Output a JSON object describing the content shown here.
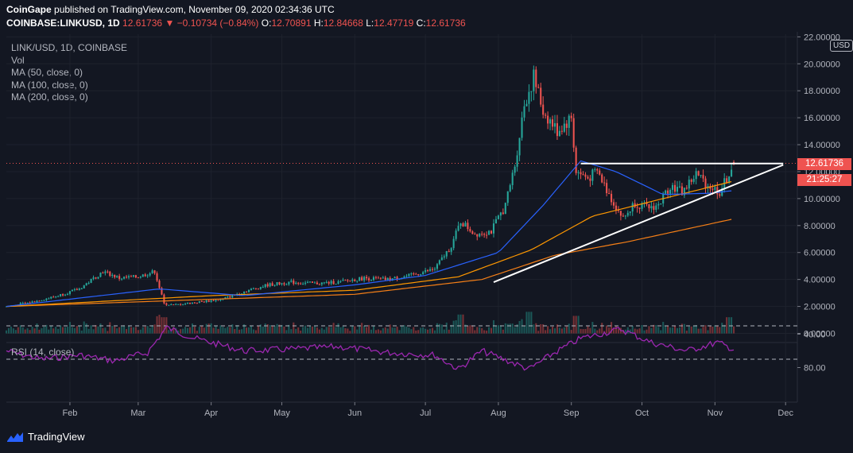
{
  "header": {
    "publisher": "CoinGape",
    "text": "published on TradingView.com, November 09, 2020 02:34:36 UTC"
  },
  "symbol_line": {
    "symbol": "COINBASE:LINKUSD, 1D",
    "price": "12.61736",
    "arrow": "▼",
    "change": "−0.10734 (−0.84%)",
    "o_label": "O:",
    "o": "12.70891",
    "h_label": "H:",
    "h": "12.84668",
    "l_label": "L:",
    "l": "12.47719",
    "c_label": "C:",
    "c": "12.61736"
  },
  "legend": {
    "pair": "LINK/USD, 1D, COINBASE",
    "vol": "Vol",
    "ma50": "MA (50, close, 0)",
    "ma100": "MA (100, close, 0)",
    "ma200": "MA (200, close, 0)"
  },
  "rsi_label": "RSI (14, close)",
  "currency": "USD",
  "price_tag": "12.61736",
  "countdown": "21:25:27",
  "footer": {
    "brand": "TradingView"
  },
  "colors": {
    "background": "#131722",
    "up": "#26a69a",
    "down": "#ef5350",
    "ma50": "#2962ff",
    "ma100": "#ff9800",
    "ma200": "#f57f17",
    "rsi": "#9c27b0"
  },
  "chart_data": {
    "type": "candlestick",
    "y_ticks": [
      "22.00000",
      "20.00000",
      "18.00000",
      "16.00000",
      "14.00000",
      "12.00000",
      "10.00000",
      "8.00000",
      "6.00000",
      "4.00000",
      "2.00000",
      "0.00000"
    ],
    "x_ticks": [
      "Feb",
      "Mar",
      "Apr",
      "May",
      "Jun",
      "Jul",
      "Aug",
      "Sep",
      "Oct",
      "Nov",
      "Dec"
    ],
    "rsi_ticks": [
      "80.00",
      "40.00"
    ],
    "rsi_bands": [
      70,
      30
    ],
    "ylim": [
      0,
      22
    ],
    "close_series": [
      [
        "2020-01-05",
        2.0
      ],
      [
        "2020-01-15",
        2.3
      ],
      [
        "2020-01-25",
        2.7
      ],
      [
        "2020-02-05",
        3.3
      ],
      [
        "2020-02-15",
        4.6
      ],
      [
        "2020-02-22",
        4.1
      ],
      [
        "2020-03-01",
        4.2
      ],
      [
        "2020-03-08",
        4.6
      ],
      [
        "2020-03-12",
        2.2
      ],
      [
        "2020-03-16",
        2.1
      ],
      [
        "2020-03-25",
        2.3
      ],
      [
        "2020-04-05",
        2.5
      ],
      [
        "2020-04-15",
        3.1
      ],
      [
        "2020-04-25",
        3.6
      ],
      [
        "2020-05-05",
        3.8
      ],
      [
        "2020-05-15",
        3.7
      ],
      [
        "2020-05-25",
        3.8
      ],
      [
        "2020-06-05",
        4.1
      ],
      [
        "2020-06-15",
        4.0
      ],
      [
        "2020-06-25",
        4.3
      ],
      [
        "2020-07-05",
        4.8
      ],
      [
        "2020-07-12",
        6.5
      ],
      [
        "2020-07-16",
        8.3
      ],
      [
        "2020-07-22",
        7.4
      ],
      [
        "2020-07-29",
        7.6
      ],
      [
        "2020-08-04",
        9.5
      ],
      [
        "2020-08-08",
        12.5
      ],
      [
        "2020-08-12",
        17.0
      ],
      [
        "2020-08-16",
        19.0
      ],
      [
        "2020-08-20",
        16.5
      ],
      [
        "2020-08-26",
        15.0
      ],
      [
        "2020-09-01",
        16.0
      ],
      [
        "2020-09-03",
        12.0
      ],
      [
        "2020-09-08",
        11.5
      ],
      [
        "2020-09-12",
        12.0
      ],
      [
        "2020-09-18",
        10.0
      ],
      [
        "2020-09-23",
        8.5
      ],
      [
        "2020-09-28",
        9.7
      ],
      [
        "2020-10-03",
        9.3
      ],
      [
        "2020-10-08",
        9.5
      ],
      [
        "2020-10-13",
        11.0
      ],
      [
        "2020-10-18",
        10.5
      ],
      [
        "2020-10-24",
        11.8
      ],
      [
        "2020-10-29",
        11.0
      ],
      [
        "2020-11-03",
        10.5
      ],
      [
        "2020-11-06",
        11.5
      ],
      [
        "2020-11-09",
        12.62
      ]
    ],
    "ma50": [
      [
        "2020-01-05",
        2.0
      ],
      [
        "2020-03-10",
        3.3
      ],
      [
        "2020-04-15",
        2.8
      ],
      [
        "2020-06-01",
        3.6
      ],
      [
        "2020-07-01",
        4.3
      ],
      [
        "2020-08-01",
        6.0
      ],
      [
        "2020-08-20",
        9.5
      ],
      [
        "2020-09-05",
        12.8
      ],
      [
        "2020-09-20",
        12.0
      ],
      [
        "2020-10-10",
        10.3
      ],
      [
        "2020-10-30",
        10.4
      ],
      [
        "2020-11-09",
        10.6
      ]
    ],
    "ma100": [
      [
        "2020-01-05",
        2.0
      ],
      [
        "2020-04-01",
        2.8
      ],
      [
        "2020-06-01",
        3.2
      ],
      [
        "2020-07-15",
        4.2
      ],
      [
        "2020-08-15",
        6.2
      ],
      [
        "2020-09-10",
        8.7
      ],
      [
        "2020-10-10",
        10.0
      ],
      [
        "2020-11-09",
        11.3
      ]
    ],
    "ma200": [
      [
        "2020-01-05",
        2.0
      ],
      [
        "2020-06-01",
        2.9
      ],
      [
        "2020-07-25",
        4.0
      ],
      [
        "2020-08-25",
        5.8
      ],
      [
        "2020-09-25",
        6.8
      ],
      [
        "2020-11-09",
        8.5
      ]
    ],
    "volume": [
      [
        "2020-03-12",
        1.2
      ],
      [
        "2020-07-16",
        1.4
      ],
      [
        "2020-08-14",
        1.6
      ],
      [
        "2020-09-03",
        1.3
      ],
      [
        "2020-11-07",
        1.2
      ]
    ],
    "rsi": [
      [
        "2020-01-05",
        60
      ],
      [
        "2020-01-20",
        70
      ],
      [
        "2020-02-05",
        65
      ],
      [
        "2020-02-20",
        72
      ],
      [
        "2020-03-05",
        62
      ],
      [
        "2020-03-13",
        32
      ],
      [
        "2020-03-25",
        45
      ],
      [
        "2020-04-15",
        60
      ],
      [
        "2020-05-05",
        58
      ],
      [
        "2020-05-25",
        55
      ],
      [
        "2020-06-15",
        62
      ],
      [
        "2020-07-05",
        65
      ],
      [
        "2020-07-15",
        82
      ],
      [
        "2020-07-25",
        60
      ],
      [
        "2020-08-05",
        72
      ],
      [
        "2020-08-14",
        82
      ],
      [
        "2020-08-25",
        62
      ],
      [
        "2020-09-05",
        45
      ],
      [
        "2020-09-22",
        34
      ],
      [
        "2020-10-05",
        50
      ],
      [
        "2020-10-20",
        60
      ],
      [
        "2020-11-02",
        50
      ],
      [
        "2020-11-09",
        58
      ]
    ],
    "trendlines": [
      {
        "kind": "horizontal",
        "from": "2020-09-05",
        "to": "2020-11-30",
        "y": 12.6
      },
      {
        "kind": "ascending",
        "from": [
          "2020-07-30",
          3.8
        ],
        "to": [
          "2020-11-30",
          12.5
        ]
      }
    ],
    "last_price": 12.61736
  }
}
